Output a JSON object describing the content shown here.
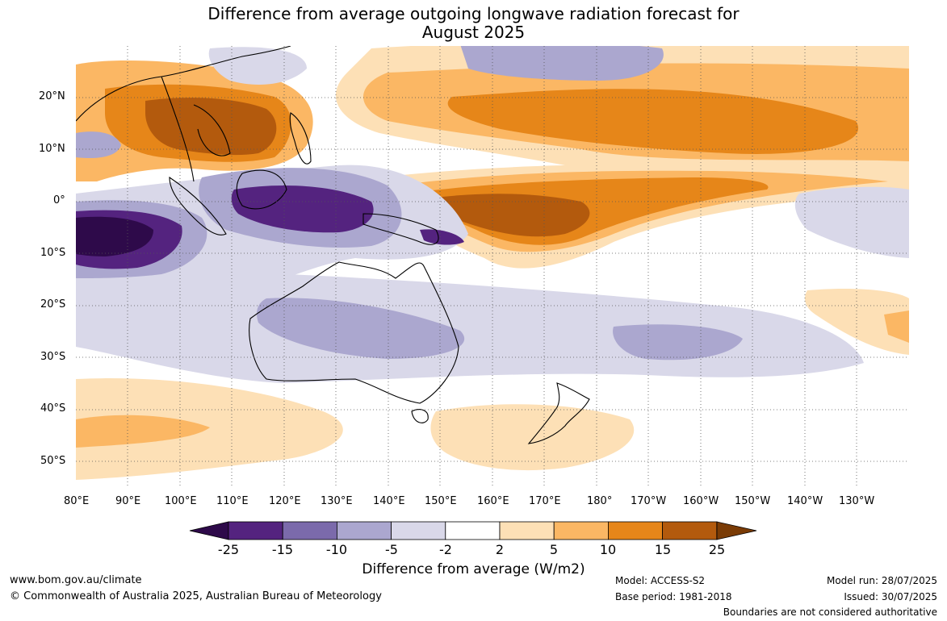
{
  "title": {
    "line1": "Difference from average outgoing longwave radiation forecast for",
    "line2": "August 2025"
  },
  "axes": {
    "lat_labels": [
      "20°N",
      "10°N",
      "0°",
      "10°S",
      "20°S",
      "30°S",
      "40°S",
      "50°S"
    ],
    "lon_labels": [
      "80°E",
      "90°E",
      "100°E",
      "110°E",
      "120°E",
      "130°E",
      "140°E",
      "150°E",
      "160°E",
      "170°E",
      "180°",
      "170°W",
      "160°W",
      "150°W",
      "140°W",
      "130°W"
    ]
  },
  "colorbar": {
    "tick_labels": [
      "-25",
      "-15",
      "-10",
      "-5",
      "-2",
      "2",
      "5",
      "10",
      "15",
      "25"
    ],
    "colors": [
      "#2e0a4a",
      "#54237f",
      "#7b6aab",
      "#aba7cf",
      "#d9d8e9",
      "#ffffff",
      "#fde0b6",
      "#fbb764",
      "#e68619",
      "#b35a0d",
      "#7a3b05"
    ],
    "title": "Difference from average (W/m2)"
  },
  "footer": {
    "url": "www.bom.gov.au/climate",
    "copyright": "© Commonwealth of Australia 2025, Australian Bureau of Meteorology",
    "model": "Model: ACCESS-S2",
    "base_period": "Base period: 1981-2018",
    "model_run": "Model run: 28/07/2025",
    "issued": "Issued: 30/07/2025",
    "disclaimer": "Boundaries are not considered authoritative"
  }
}
